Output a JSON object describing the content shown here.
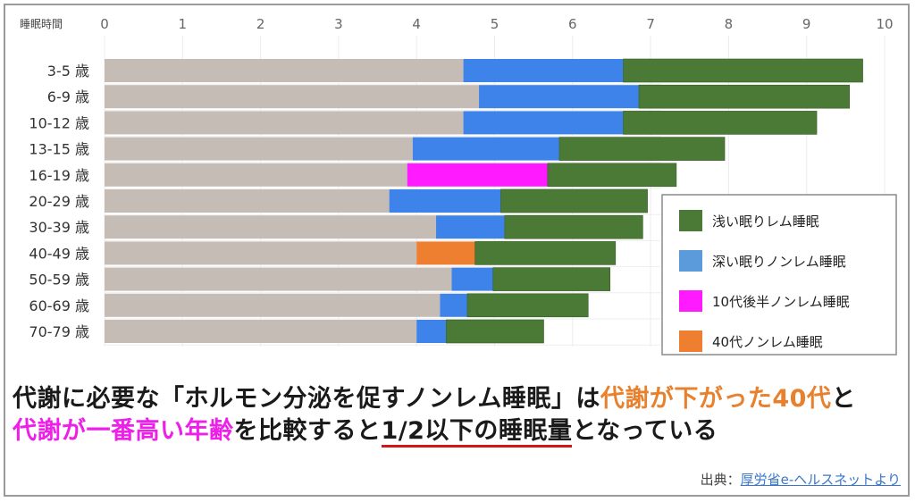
{
  "chart_data": {
    "type": "bar",
    "orientation": "horizontal",
    "stacked": true,
    "ylabel": "睡眠時間",
    "xlim": [
      0,
      10
    ],
    "x_ticks": [
      "0",
      "1",
      "2",
      "3",
      "4",
      "5",
      "6",
      "7",
      "8",
      "9",
      "10"
    ],
    "grid": true,
    "legend_position": "right",
    "categories": [
      "3-5 歳",
      "6-9 歳",
      "10-12 歳",
      "13-15 歳",
      "16-19 歳",
      "20-29 歳",
      "30-39 歳",
      "40-49 歳",
      "50-59 歳",
      "60-69 歳",
      "70-79 歳"
    ],
    "base_values": [
      4.6,
      4.8,
      4.6,
      3.95,
      3.88,
      3.65,
      4.25,
      4.0,
      4.45,
      4.3,
      4.0
    ],
    "deep_sleep": [
      2.05,
      2.05,
      2.05,
      1.88,
      1.8,
      1.43,
      0.88,
      0.75,
      0.53,
      0.35,
      0.38
    ],
    "light_sleep": [
      3.07,
      2.7,
      2.48,
      2.12,
      1.65,
      1.88,
      1.77,
      1.8,
      1.5,
      1.55,
      1.25
    ],
    "deep_sleep_colors": [
      "#3e83ea",
      "#3e83ea",
      "#3e83ea",
      "#3e83ea",
      "#ff1aff",
      "#3e83ea",
      "#3e83ea",
      "#ef7f30",
      "#3e83ea",
      "#3e83ea",
      "#3e83ea"
    ],
    "colors": {
      "base": "#c6bcb6",
      "deep": "#3e83ea",
      "light": "#4a7a35"
    },
    "legend": [
      {
        "label": "浅い眠りレム睡眠",
        "color": "#4a7a35"
      },
      {
        "label": "深い眠りノンレム睡眠",
        "color": "#5b9bdc"
      },
      {
        "label": "10代後半ノンレム睡眠",
        "color": "#ff1aff"
      },
      {
        "label": "40代ノンレム睡眠",
        "color": "#ef7f30"
      }
    ]
  },
  "headline": {
    "line1_a": "代謝に必要な「ホルモン分泌を促すノンレム睡眠」は",
    "line1_b": "代謝が下がった40代",
    "line1_c": "と",
    "line2_a": "代謝が一番高い年齢",
    "line2_b": "を比較すると",
    "line2_c": "1/2以下の睡眠量",
    "line2_d": "となっている"
  },
  "source": {
    "prefix": "出典：",
    "link": "厚労省e-ヘルスネットより"
  }
}
